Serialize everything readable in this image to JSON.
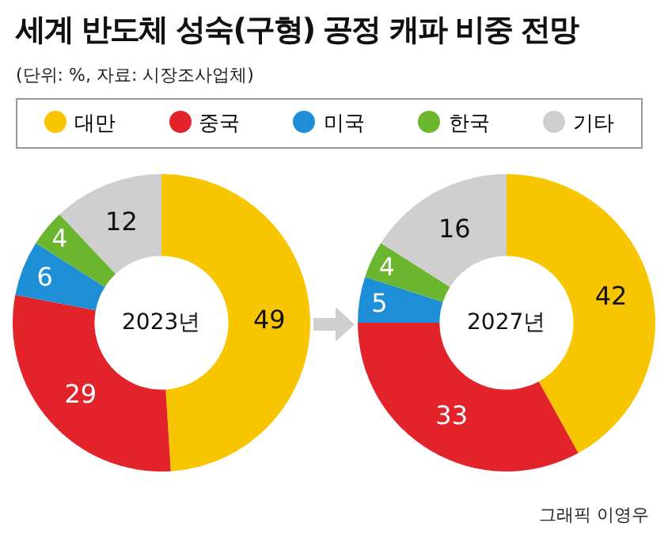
{
  "chart_data": [
    {
      "type": "donut",
      "title": "세계 반도체 성숙(구형) 공정 캐파 비중 전망",
      "subtitle": "(단위: %, 자료: 시장조사업체)",
      "categories": [
        "대만",
        "중국",
        "미국",
        "한국",
        "기타"
      ],
      "values": [
        49,
        29,
        6,
        4,
        12
      ],
      "colors": [
        "#f7c600",
        "#e2232a",
        "#1e8fd6",
        "#6cb62f",
        "#cfcfcf"
      ],
      "data_labels": true,
      "legend": "top",
      "annotations": [
        "2023년"
      ]
    },
    {
      "type": "donut",
      "categories": [
        null,
        null,
        null,
        null,
        null
      ],
      "values": [
        42,
        33,
        5,
        4,
        16
      ],
      "colors": [
        "#f7c600",
        "#e2232a",
        "#1e8fd6",
        "#6cb62f",
        "#cfcfcf"
      ],
      "data_labels": true,
      "annotations": [
        "2027년",
        "그래픽 이영우"
      ]
    }
  ]
}
